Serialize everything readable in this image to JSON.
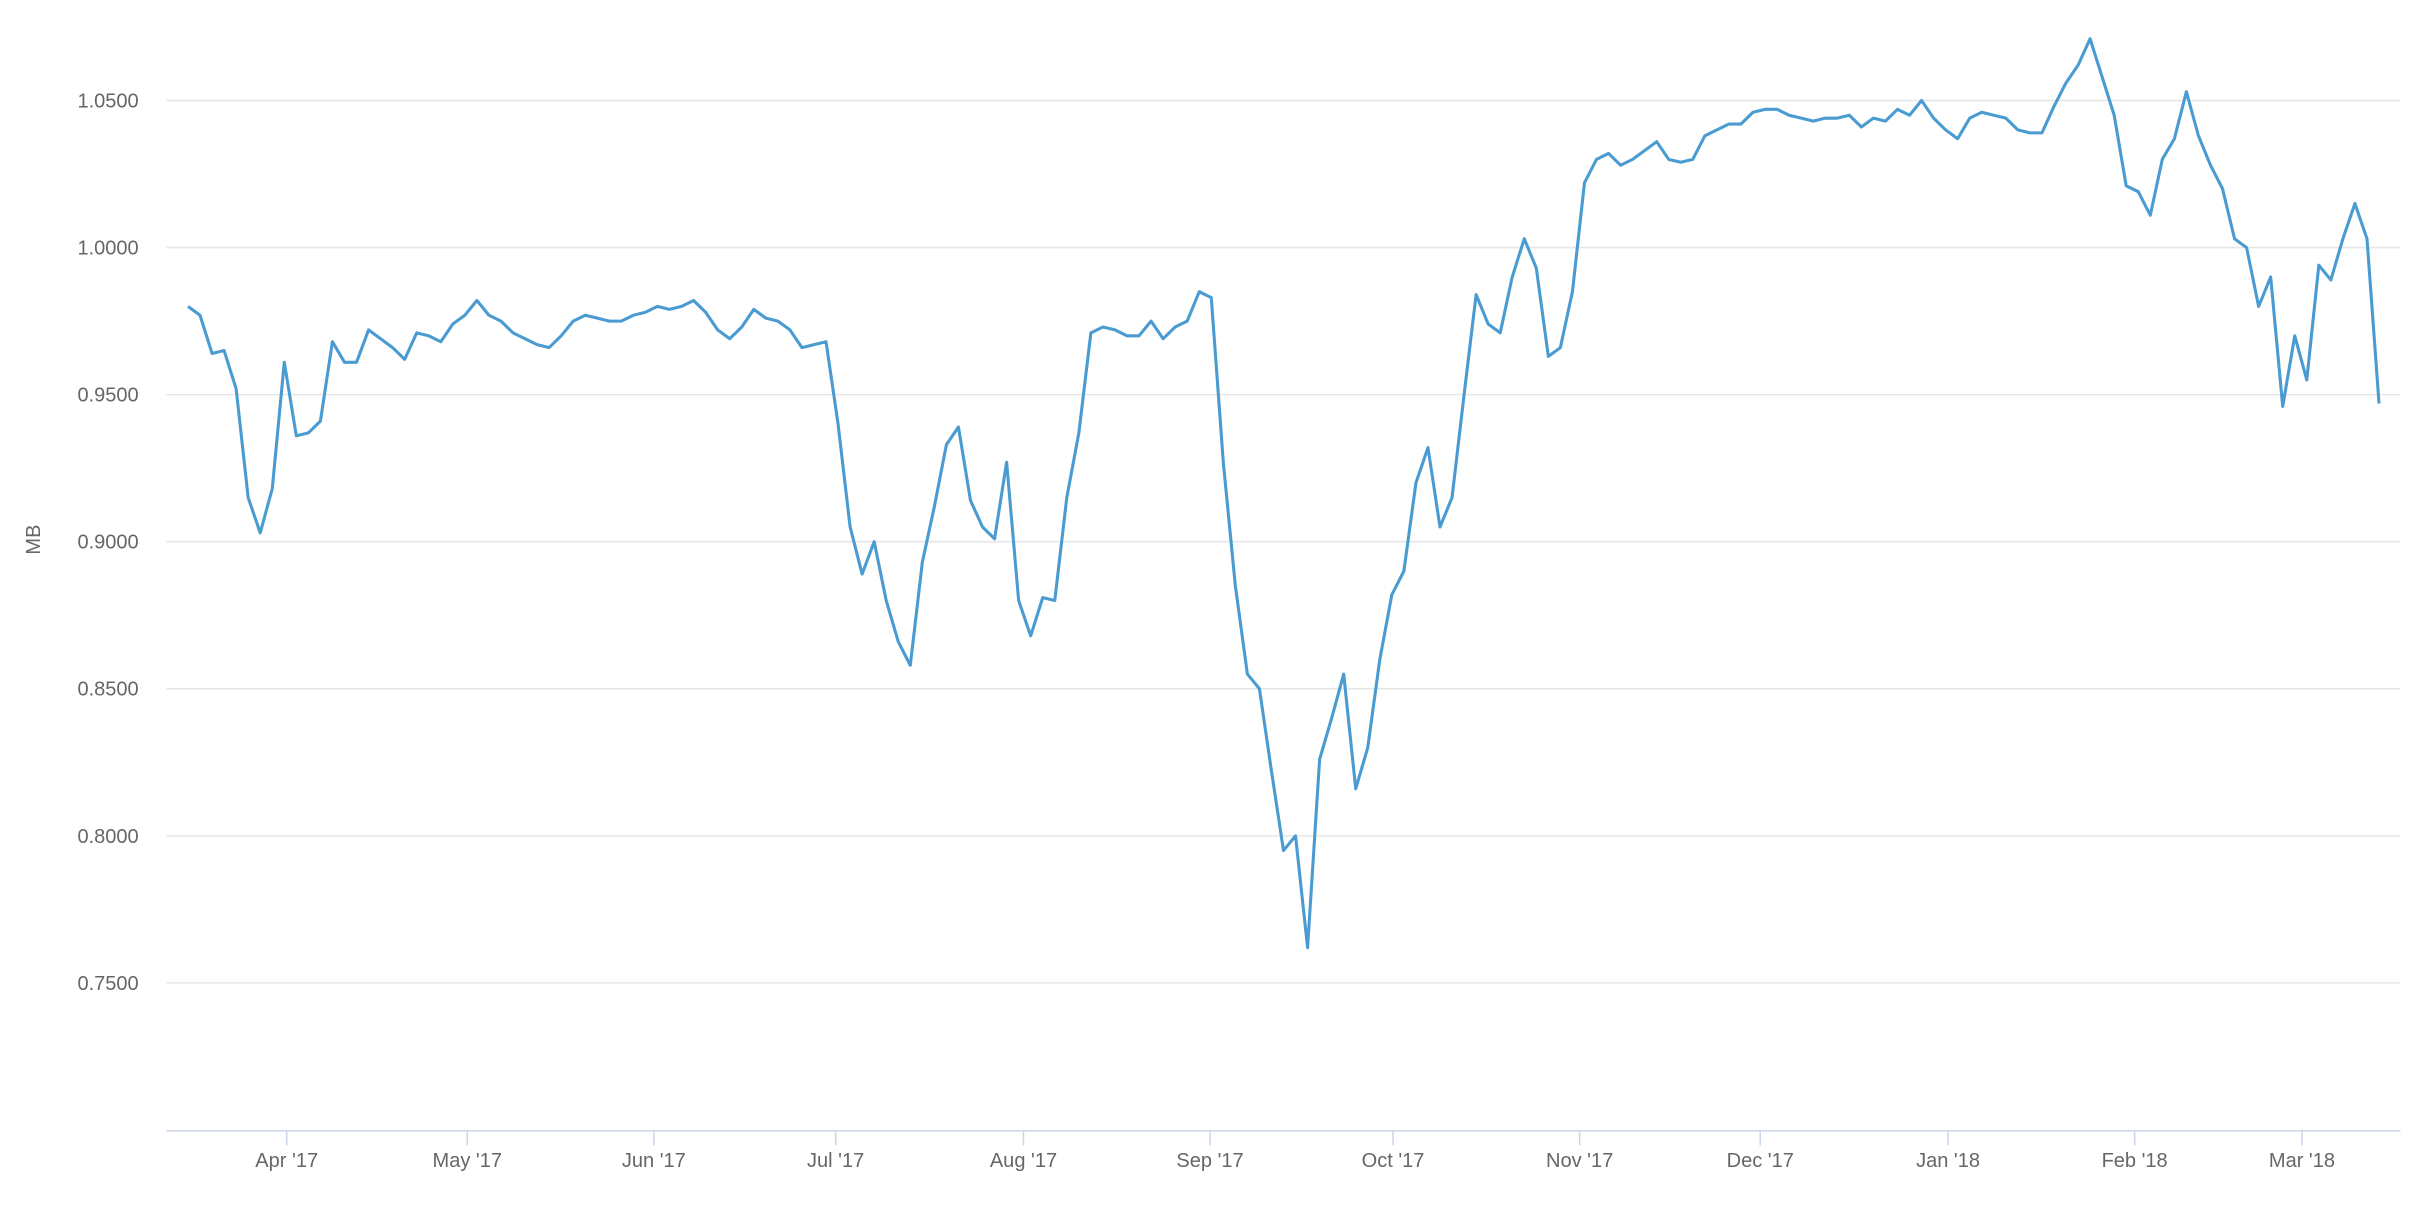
{
  "chart_data": {
    "type": "line",
    "y_label": "MB",
    "color": "#4a9bd1",
    "grid": true,
    "xlim": [
      0,
      182
    ],
    "xticks": [
      {
        "value": 8.2,
        "label": "Apr '17"
      },
      {
        "value": 23.2,
        "label": "May '17"
      },
      {
        "value": 38.7,
        "label": "Jun '17"
      },
      {
        "value": 53.8,
        "label": "Jul '17"
      },
      {
        "value": 69.4,
        "label": "Aug '17"
      },
      {
        "value": 84.9,
        "label": "Sep '17"
      },
      {
        "value": 100.1,
        "label": "Oct '17"
      },
      {
        "value": 115.6,
        "label": "Nov '17"
      },
      {
        "value": 130.6,
        "label": "Dec '17"
      },
      {
        "value": 146.2,
        "label": "Jan '18"
      },
      {
        "value": 161.7,
        "label": "Feb '18"
      },
      {
        "value": 175.6,
        "label": "Mar '18"
      }
    ],
    "ylim": [
      0.7,
      1.075
    ],
    "yticks": [
      {
        "value": 0.75,
        "label": "0.7500"
      },
      {
        "value": 0.8,
        "label": "0.8000"
      },
      {
        "value": 0.85,
        "label": "0.8500"
      },
      {
        "value": 0.9,
        "label": "0.9000"
      },
      {
        "value": 0.95,
        "label": "0.9500"
      },
      {
        "value": 1.0,
        "label": "1.0000"
      },
      {
        "value": 1.05,
        "label": "1.0500"
      }
    ],
    "values": [
      0.98,
      0.977,
      0.964,
      0.965,
      0.952,
      0.915,
      0.903,
      0.918,
      0.961,
      0.936,
      0.937,
      0.941,
      0.968,
      0.961,
      0.961,
      0.972,
      0.969,
      0.966,
      0.962,
      0.971,
      0.97,
      0.968,
      0.974,
      0.977,
      0.982,
      0.977,
      0.975,
      0.971,
      0.969,
      0.967,
      0.966,
      0.97,
      0.975,
      0.977,
      0.976,
      0.975,
      0.975,
      0.977,
      0.978,
      0.98,
      0.979,
      0.98,
      0.982,
      0.978,
      0.972,
      0.969,
      0.973,
      0.979,
      0.976,
      0.975,
      0.972,
      0.966,
      0.967,
      0.968,
      0.94,
      0.905,
      0.889,
      0.9,
      0.88,
      0.866,
      0.858,
      0.893,
      0.912,
      0.933,
      0.939,
      0.914,
      0.905,
      0.901,
      0.927,
      0.88,
      0.868,
      0.881,
      0.88,
      0.915,
      0.937,
      0.971,
      0.973,
      0.972,
      0.97,
      0.97,
      0.975,
      0.969,
      0.973,
      0.975,
      0.985,
      0.983,
      0.927,
      0.885,
      0.855,
      0.85,
      0.822,
      0.795,
      0.8,
      0.762,
      0.826,
      0.84,
      0.855,
      0.816,
      0.83,
      0.86,
      0.882,
      0.89,
      0.92,
      0.932,
      0.905,
      0.915,
      0.95,
      0.984,
      0.974,
      0.971,
      0.99,
      1.003,
      0.993,
      0.963,
      0.966,
      0.985,
      1.022,
      1.03,
      1.032,
      1.028,
      1.03,
      1.033,
      1.036,
      1.03,
      1.029,
      1.03,
      1.038,
      1.04,
      1.042,
      1.042,
      1.046,
      1.047,
      1.047,
      1.045,
      1.044,
      1.043,
      1.044,
      1.044,
      1.045,
      1.041,
      1.044,
      1.043,
      1.047,
      1.045,
      1.05,
      1.044,
      1.04,
      1.037,
      1.044,
      1.046,
      1.045,
      1.044,
      1.04,
      1.039,
      1.039,
      1.048,
      1.056,
      1.062,
      1.071,
      1.058,
      1.045,
      1.021,
      1.019,
      1.011,
      1.03,
      1.037,
      1.053,
      1.038,
      1.028,
      1.02,
      1.003,
      1.0,
      0.98,
      0.99,
      0.946,
      0.97,
      0.955,
      0.994,
      0.989,
      1.003,
      1.015,
      1.003,
      0.947
    ]
  }
}
